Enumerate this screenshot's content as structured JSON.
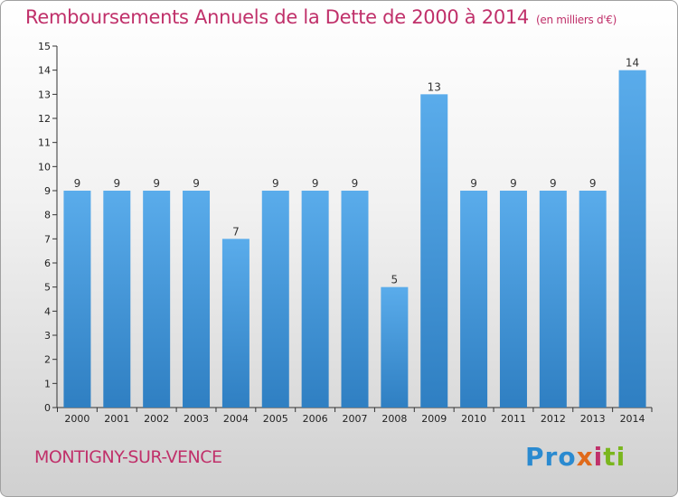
{
  "header": {
    "title": "Remboursements Annuels de la Dette de 2000 à 2014",
    "unit": "(en milliers d'€)"
  },
  "footer": {
    "commune": "MONTIGNY-SUR-VENCE",
    "logo": [
      "Pro",
      "x",
      "i",
      "ti"
    ]
  },
  "colors": {
    "bar_top": "#5aaceb",
    "bar_bottom": "#2f7fc2",
    "title": "#c0306a"
  },
  "chart_data": {
    "type": "bar",
    "title": "Remboursements Annuels de la Dette de 2000 à 2014",
    "xlabel": "",
    "ylabel": "",
    "categories": [
      "2000",
      "2001",
      "2002",
      "2003",
      "2004",
      "2005",
      "2006",
      "2007",
      "2008",
      "2009",
      "2010",
      "2011",
      "2012",
      "2013",
      "2014"
    ],
    "values": [
      9,
      9,
      9,
      9,
      7,
      9,
      9,
      9,
      5,
      13,
      9,
      9,
      9,
      9,
      14
    ],
    "ylim": [
      0,
      15
    ],
    "yticks": [
      0,
      1,
      2,
      3,
      4,
      5,
      6,
      7,
      8,
      9,
      10,
      11,
      12,
      13,
      14,
      15
    ],
    "grid": false,
    "legend": "none"
  }
}
